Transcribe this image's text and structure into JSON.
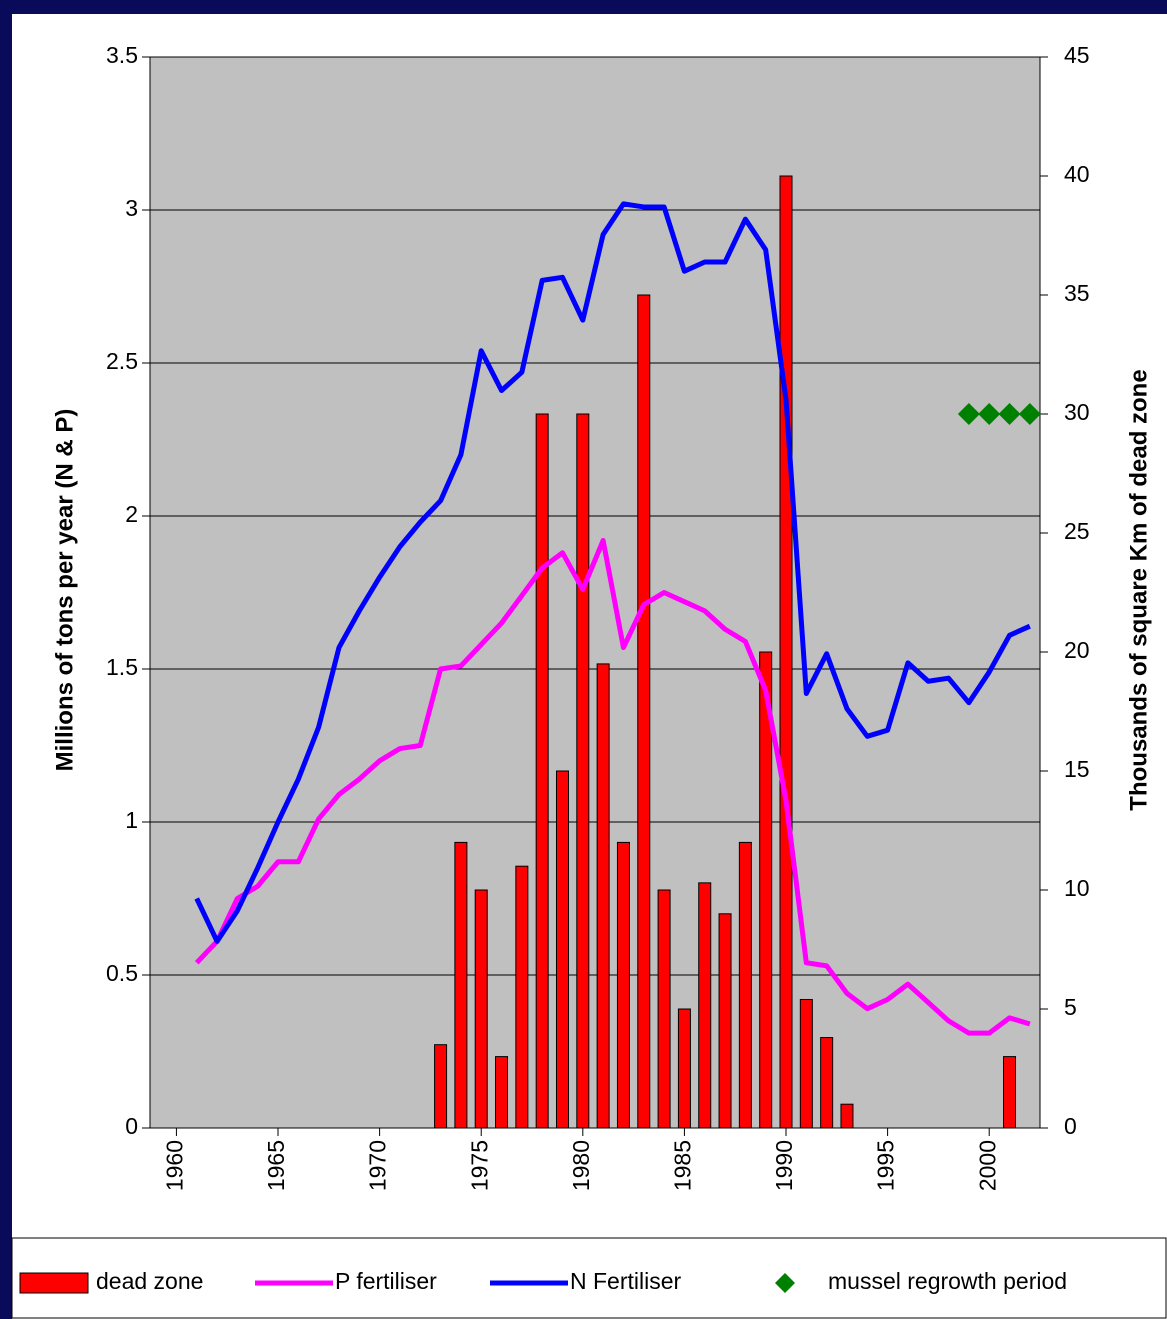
{
  "chart_data": {
    "type": "bar",
    "y_label": "Millions of tons per year (N & P)",
    "y2_label": "Thousands of square Km of dead zone",
    "x": [
      1961,
      1962,
      1963,
      1964,
      1965,
      1966,
      1967,
      1968,
      1969,
      1970,
      1971,
      1972,
      1973,
      1974,
      1975,
      1976,
      1977,
      1978,
      1979,
      1980,
      1981,
      1982,
      1983,
      1984,
      1985,
      1986,
      1987,
      1988,
      1989,
      1990,
      1991,
      1992,
      1993,
      1994,
      1995,
      1996,
      1997,
      1998,
      1999,
      2000,
      2001,
      2002
    ],
    "xlim": [
      1958.7,
      2002.5
    ],
    "xticks": [
      1960,
      1965,
      1970,
      1975,
      1980,
      1985,
      1990,
      1995,
      2000
    ],
    "ylim": [
      0,
      3.5
    ],
    "yticks": [
      0,
      0.5,
      1,
      1.5,
      2,
      2.5,
      3,
      3.5
    ],
    "y2lim": [
      0,
      45
    ],
    "y2ticks": [
      0,
      5,
      10,
      15,
      20,
      25,
      30,
      35,
      40,
      45
    ],
    "grid": true,
    "legend": "bottom",
    "series": [
      {
        "name": "dead zone",
        "type": "bar",
        "axis": "y2",
        "color": "#ff0000",
        "values": [
          null,
          null,
          null,
          null,
          null,
          null,
          null,
          null,
          null,
          null,
          null,
          null,
          3.5,
          12,
          10,
          3,
          11,
          30,
          15,
          30,
          19.5,
          12,
          35,
          10,
          5,
          10.3,
          9,
          12,
          20,
          40,
          5.4,
          3.8,
          1,
          null,
          null,
          null,
          null,
          null,
          null,
          null,
          3,
          null
        ]
      },
      {
        "name": "P fertiliser",
        "type": "line",
        "color": "#ff00ff",
        "values": [
          0.54,
          0.61,
          0.75,
          0.79,
          0.87,
          0.87,
          1.01,
          1.09,
          1.14,
          1.2,
          1.24,
          1.25,
          1.5,
          1.51,
          1.58,
          1.65,
          1.74,
          1.83,
          1.88,
          1.76,
          1.92,
          1.57,
          1.71,
          1.75,
          1.72,
          1.69,
          1.63,
          1.59,
          1.43,
          1.07,
          0.54,
          0.53,
          0.44,
          0.39,
          0.42,
          0.47,
          0.41,
          0.35,
          0.31,
          0.31,
          0.36,
          0.34
        ]
      },
      {
        "name": "N Fertiliser",
        "type": "line",
        "color": "#0000ff",
        "values": [
          0.75,
          0.61,
          0.71,
          0.85,
          1.0,
          1.14,
          1.31,
          1.57,
          1.69,
          1.8,
          1.9,
          1.98,
          2.05,
          2.2,
          2.54,
          2.41,
          2.47,
          2.77,
          2.78,
          2.64,
          2.92,
          3.02,
          3.01,
          3.01,
          2.8,
          2.83,
          2.83,
          2.97,
          2.87,
          2.38,
          1.42,
          1.55,
          1.37,
          1.28,
          1.3,
          1.52,
          1.46,
          1.47,
          1.39,
          1.49,
          1.61,
          1.64
        ]
      },
      {
        "name": "mussel regrowth period",
        "type": "scatter",
        "axis": "y2",
        "color": "#008000",
        "values": [
          null,
          null,
          null,
          null,
          null,
          null,
          null,
          null,
          null,
          null,
          null,
          null,
          null,
          null,
          null,
          null,
          null,
          null,
          null,
          null,
          null,
          null,
          null,
          null,
          null,
          null,
          null,
          null,
          null,
          null,
          null,
          null,
          null,
          null,
          null,
          null,
          null,
          null,
          30,
          30,
          30,
          30
        ]
      }
    ]
  }
}
